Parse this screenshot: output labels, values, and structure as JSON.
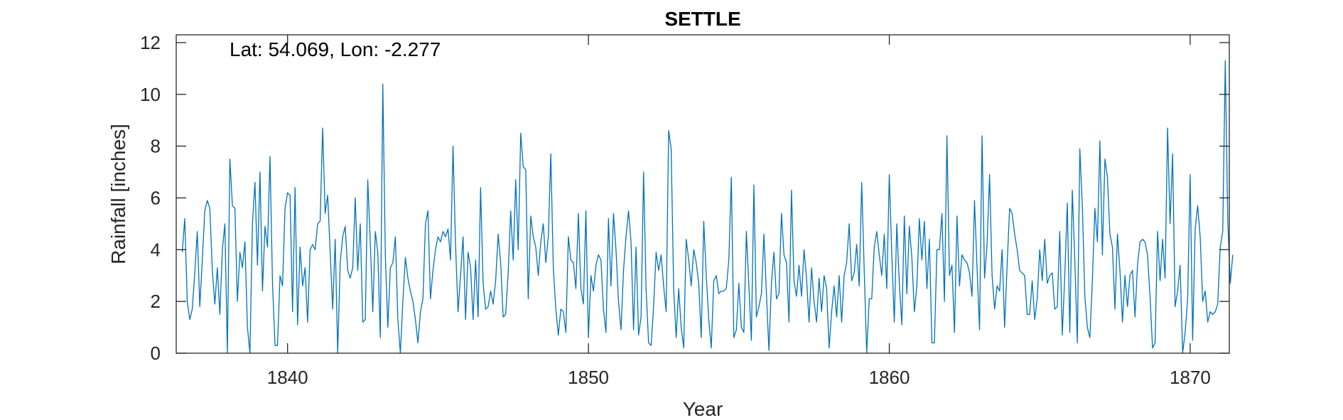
{
  "chart_data": {
    "type": "line",
    "title": "SETTLE",
    "annotation": "Lat: 54.069, Lon: -2.277",
    "xlabel": "Year",
    "ylabel": "Rainfall [inches]",
    "xlim": [
      1836.3,
      1871.3
    ],
    "ylim": [
      0,
      12.3
    ],
    "xticks": [
      1840,
      1850,
      1860,
      1870
    ],
    "yticks": [
      0,
      2,
      4,
      6,
      8,
      10,
      12
    ],
    "xtick_labels": [
      "1840",
      "1850",
      "1860",
      "1870"
    ],
    "ytick_labels": [
      "0",
      "2",
      "4",
      "6",
      "8",
      "10",
      "12"
    ],
    "grid": false,
    "line_color": "#0072BD",
    "axis_color": "#262626",
    "series": [
      {
        "x_start": 1836.5,
        "x_step": 0.08333,
        "values": [
          3.9,
          5.2,
          2.0,
          1.3,
          1.7,
          3.1,
          4.7,
          1.8,
          3.6,
          5.5,
          5.9,
          5.6,
          3.2,
          1.9,
          3.3,
          1.5,
          4.0,
          5.0,
          0.0,
          7.5,
          5.7,
          5.6,
          2.0,
          3.9,
          3.3,
          4.3,
          1.0,
          0.0,
          5.0,
          6.6,
          3.4,
          7.0,
          2.4,
          4.9,
          4.1,
          7.6,
          2.7,
          0.3,
          0.3,
          3.0,
          2.6,
          5.6,
          6.2,
          6.1,
          1.6,
          6.4,
          1.1,
          4.1,
          2.6,
          3.3,
          1.2,
          4.0,
          4.2,
          4.0,
          5.0,
          5.1,
          8.7,
          5.4,
          6.1,
          3.9,
          1.7,
          4.4,
          0.0,
          3.5,
          4.5,
          4.9,
          3.2,
          2.9,
          3.3,
          6.0,
          3.2,
          5.0,
          1.2,
          1.3,
          6.7,
          4.3,
          1.6,
          4.7,
          3.9,
          0.6,
          10.4,
          3.8,
          1.0,
          3.3,
          3.5,
          4.5,
          1.3,
          0.0,
          2.0,
          3.7,
          2.9,
          2.4,
          2.0,
          1.3,
          0.4,
          1.6,
          2.1,
          5.0,
          5.5,
          2.1,
          3.2,
          4.0,
          4.5,
          4.3,
          4.7,
          4.5,
          4.8,
          3.6,
          8.0,
          4.2,
          1.6,
          3.0,
          4.5,
          1.3,
          3.9,
          3.3,
          1.3,
          3.6,
          1.4,
          6.4,
          2.7,
          1.7,
          1.8,
          2.4,
          1.9,
          2.8,
          4.6,
          3.5,
          1.4,
          1.5,
          3.1,
          5.5,
          3.6,
          6.7,
          4.0,
          8.5,
          7.2,
          7.1,
          2.1,
          5.3,
          4.5,
          4.1,
          3.0,
          4.3,
          5.0,
          3.5,
          4.5,
          7.7,
          3.3,
          1.7,
          0.7,
          1.7,
          1.6,
          0.8,
          4.5,
          3.6,
          3.5,
          2.5,
          5.4,
          2.5,
          1.9,
          5.5,
          0.6,
          3.0,
          2.4,
          3.4,
          3.8,
          3.6,
          1.7,
          0.8,
          5.2,
          2.6,
          5.4,
          4.0,
          2.0,
          0.9,
          3.2,
          4.5,
          5.5,
          4.3,
          0.9,
          4.1,
          0.7,
          1.4,
          7.0,
          2.5,
          0.4,
          0.3,
          1.8,
          3.9,
          3.2,
          3.8,
          2.6,
          1.6,
          8.6,
          7.9,
          2.5,
          0.6,
          2.5,
          1.0,
          0.2,
          4.4,
          3.6,
          2.6,
          4.0,
          3.5,
          2.7,
          0.6,
          5.1,
          3.0,
          1.3,
          0.2,
          2.8,
          3.0,
          2.3,
          2.4,
          2.4,
          2.5,
          3.6,
          6.8,
          0.6,
          0.9,
          2.7,
          1.0,
          0.8,
          4.7,
          2.6,
          0.5,
          6.5,
          1.4,
          1.8,
          2.3,
          4.6,
          2.3,
          0.1,
          2.7,
          3.9,
          2.1,
          2.3,
          5.4,
          3.8,
          3.5,
          1.2,
          6.3,
          2.8,
          2.2,
          3.4,
          2.2,
          4.0,
          2.9,
          1.2,
          3.3,
          2.0,
          1.2,
          2.9,
          1.6,
          3.0,
          2.5,
          0.2,
          1.6,
          2.6,
          1.4,
          3.0,
          1.2,
          3.0,
          3.5,
          5.0,
          2.8,
          3.1,
          4.2,
          2.6,
          6.6,
          3.2,
          0.0,
          2.1,
          2.1,
          4.1,
          4.7,
          3.8,
          3.0,
          4.6,
          2.5,
          6.9,
          3.8,
          1.2,
          5.0,
          2.7,
          1.1,
          5.3,
          2.3,
          4.9,
          3.7,
          1.6,
          2.6,
          5.2,
          3.6,
          5.1,
          2.5,
          4.4,
          0.4,
          0.4,
          4.0,
          4.0,
          5.4,
          2.0,
          8.4,
          3.0,
          3.4,
          0.8,
          5.3,
          2.6,
          3.8,
          3.6,
          3.5,
          3.1,
          2.2,
          5.9,
          3.3,
          0.9,
          8.4,
          2.9,
          4.2,
          6.9,
          3.0,
          1.7,
          2.6,
          2.4,
          4.0,
          1.0,
          3.4,
          5.6,
          5.4,
          4.6,
          4.0,
          3.2,
          3.1,
          3.0,
          1.5,
          1.5,
          2.8,
          1.3,
          2.1,
          4.0,
          2.8,
          4.4,
          2.7,
          3.0,
          3.1,
          1.7,
          1.8,
          4.7,
          0.7,
          3.0,
          5.8,
          0.8,
          6.3,
          3.6,
          0.4,
          7.9,
          5.7,
          2.2,
          1.0,
          0.6,
          2.8,
          5.6,
          4.3,
          8.2,
          3.8,
          7.5,
          6.8,
          4.6,
          4.1,
          1.7,
          4.6,
          3.2,
          1.2,
          3.0,
          1.8,
          3.0,
          3.2,
          1.4,
          3.4,
          4.3,
          4.4,
          4.3,
          3.8,
          2.2,
          0.2,
          0.4,
          4.7,
          2.8,
          4.4,
          2.9,
          8.7,
          5.0,
          7.7,
          1.8,
          2.4,
          3.4,
          0.0,
          0.8,
          2.1,
          6.9,
          0.5,
          4.8,
          5.7,
          4.5,
          2.0,
          2.4,
          1.2,
          1.6,
          1.5,
          1.6,
          1.9,
          4.1,
          4.7,
          11.3,
          5.1,
          2.7,
          3.8
        ]
      }
    ]
  }
}
